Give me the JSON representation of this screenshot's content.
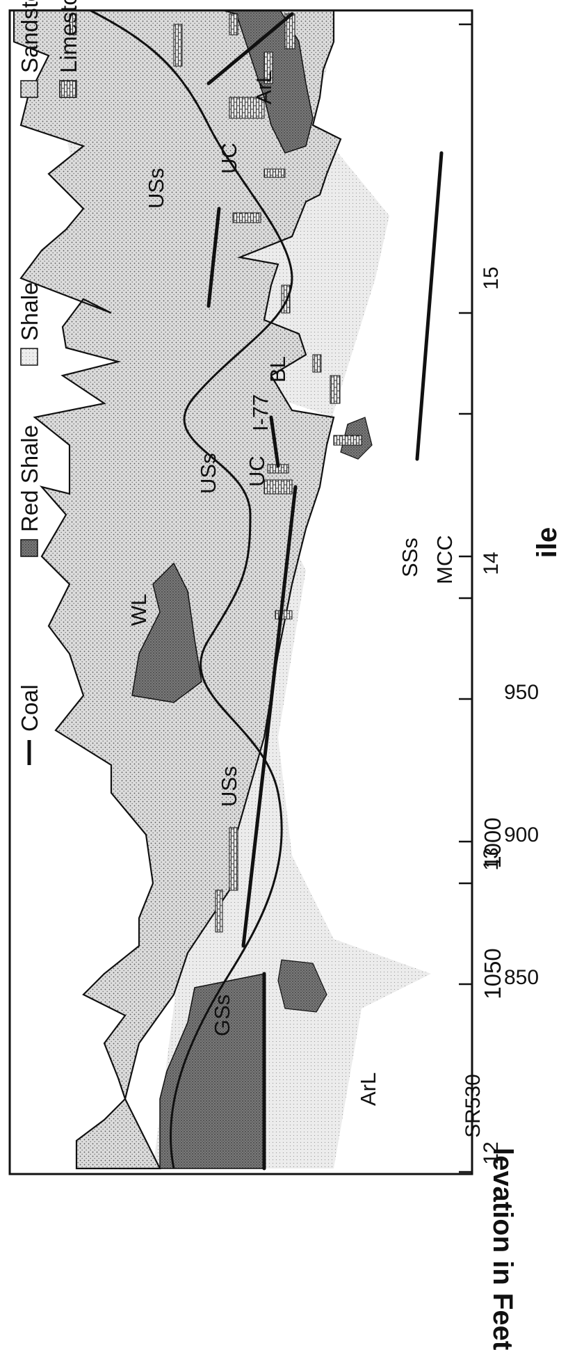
{
  "y_axis": {
    "label": "levation in Feet",
    "ticks": [
      "1050",
      "1000",
      "950",
      "900",
      "850"
    ]
  },
  "x_axis": {
    "label": "ile",
    "ticks": [
      "12",
      "13",
      "14",
      "15"
    ],
    "station_label": "SR530"
  },
  "legend": {
    "sandstone": "Sandstone",
    "shale": "Shale",
    "red_shale": "Red Shale",
    "coal": "Coal",
    "limestone": "Limestone"
  },
  "unit_labels": {
    "ArL_left": "ArL",
    "GSs": "GSs",
    "USs_left": "USs",
    "WL": "WL",
    "USs_mid": "USs",
    "UC_mid": "UC",
    "I77": "I-77",
    "BL": "BL",
    "SSs": "SSs",
    "MCC": "MCC",
    "USs_right": "USs",
    "UC_right": "UC",
    "ArL_right": "ArL"
  },
  "colors": {
    "frame": "#111111",
    "sandstone": "#d4d4d4",
    "shale_halo": "#e2e2e2",
    "red_shale": "#7a7a7a",
    "coal": "#111111",
    "limestone": "#9a9a9a"
  }
}
